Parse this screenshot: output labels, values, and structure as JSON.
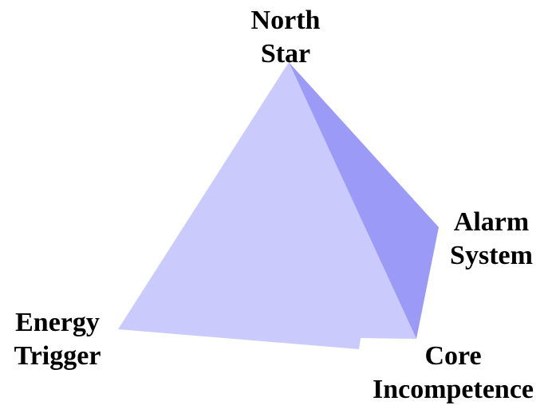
{
  "nodes": [
    {
      "label": "North Star"
    },
    {
      "label": "Alarm System"
    },
    {
      "label": "Energy Trigger"
    },
    {
      "label": "Core Incompetence"
    }
  ]
}
